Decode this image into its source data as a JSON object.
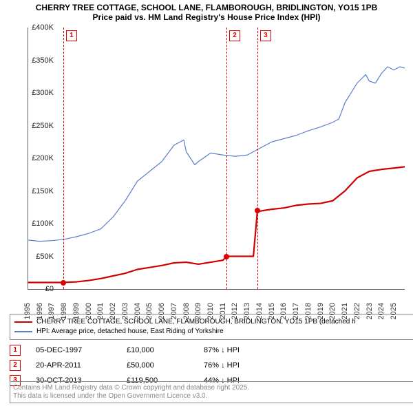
{
  "title_line1": "CHERRY TREE COTTAGE, SCHOOL LANE, FLAMBOROUGH, BRIDLINGTON, YO15 1PB",
  "title_line2": "Price paid vs. HM Land Registry's House Price Index (HPI)",
  "chart": {
    "type": "line",
    "x_min": 1995,
    "x_max": 2025.9,
    "y_min": 0,
    "y_max": 400000,
    "y_ticks": [
      0,
      50000,
      100000,
      150000,
      200000,
      250000,
      300000,
      350000,
      400000
    ],
    "y_tick_labels": [
      "£0",
      "£50K",
      "£100K",
      "£150K",
      "£200K",
      "£250K",
      "£300K",
      "£350K",
      "£400K"
    ],
    "x_ticks": [
      1995,
      1996,
      1997,
      1998,
      1999,
      2000,
      2001,
      2002,
      2003,
      2004,
      2005,
      2006,
      2007,
      2008,
      2009,
      2010,
      2011,
      2012,
      2013,
      2014,
      2015,
      2016,
      2017,
      2018,
      2019,
      2020,
      2021,
      2022,
      2023,
      2024,
      2025
    ],
    "colors": {
      "price": "#d00000",
      "hpi": "#5b7fc7",
      "grid": "#e6e6e6",
      "axis": "#5a5a5a",
      "marker_border": "#d00000"
    },
    "line_width_price": 2.2,
    "line_width_hpi": 1.2,
    "price_series": [
      [
        1995,
        10000
      ],
      [
        1997.93,
        10000
      ],
      [
        1997.93,
        10000
      ],
      [
        1999,
        11000
      ],
      [
        2000,
        13000
      ],
      [
        2001,
        16000
      ],
      [
        2002,
        20000
      ],
      [
        2003,
        24000
      ],
      [
        2004,
        30000
      ],
      [
        2005,
        33000
      ],
      [
        2006,
        36000
      ],
      [
        2007,
        40000
      ],
      [
        2008,
        41000
      ],
      [
        2009,
        38000
      ],
      [
        2010,
        41000
      ],
      [
        2011,
        44000
      ],
      [
        2011.3,
        50000
      ],
      [
        2013,
        50000
      ],
      [
        2013.5,
        50000
      ],
      [
        2013.83,
        119500
      ],
      [
        2014,
        119000
      ],
      [
        2015,
        122000
      ],
      [
        2016,
        124000
      ],
      [
        2017,
        128000
      ],
      [
        2018,
        130000
      ],
      [
        2019,
        131000
      ],
      [
        2020,
        135000
      ],
      [
        2021,
        150000
      ],
      [
        2022,
        170000
      ],
      [
        2023,
        180000
      ],
      [
        2024,
        183000
      ],
      [
        2025,
        185000
      ],
      [
        2025.9,
        187000
      ]
    ],
    "hpi_series": [
      [
        1995,
        75000
      ],
      [
        1996,
        73000
      ],
      [
        1997,
        74000
      ],
      [
        1998,
        76000
      ],
      [
        1999,
        80000
      ],
      [
        2000,
        85000
      ],
      [
        2001,
        92000
      ],
      [
        2002,
        110000
      ],
      [
        2003,
        135000
      ],
      [
        2004,
        165000
      ],
      [
        2005,
        180000
      ],
      [
        2006,
        195000
      ],
      [
        2007,
        220000
      ],
      [
        2007.8,
        228000
      ],
      [
        2008,
        210000
      ],
      [
        2008.7,
        190000
      ],
      [
        2009,
        195000
      ],
      [
        2010,
        208000
      ],
      [
        2011,
        205000
      ],
      [
        2012,
        203000
      ],
      [
        2013,
        205000
      ],
      [
        2014,
        215000
      ],
      [
        2015,
        225000
      ],
      [
        2016,
        230000
      ],
      [
        2017,
        235000
      ],
      [
        2018,
        242000
      ],
      [
        2019,
        248000
      ],
      [
        2020,
        255000
      ],
      [
        2020.5,
        260000
      ],
      [
        2021,
        285000
      ],
      [
        2022,
        315000
      ],
      [
        2022.7,
        328000
      ],
      [
        2023,
        318000
      ],
      [
        2023.5,
        315000
      ],
      [
        2024,
        330000
      ],
      [
        2024.5,
        340000
      ],
      [
        2025,
        335000
      ],
      [
        2025.5,
        340000
      ],
      [
        2025.9,
        338000
      ]
    ],
    "markers": [
      {
        "n": "1",
        "x": 1997.93,
        "y": 10000
      },
      {
        "n": "2",
        "x": 2011.3,
        "y": 50000
      },
      {
        "n": "3",
        "x": 2013.83,
        "y": 119500
      }
    ]
  },
  "legend": {
    "row1": "CHERRY TREE COTTAGE, SCHOOL LANE, FLAMBOROUGH, BRIDLINGTON, YO15 1PB (detached h",
    "row2": "HPI: Average price, detached house, East Riding of Yorkshire"
  },
  "transactions": [
    {
      "n": "1",
      "date": "05-DEC-1997",
      "price": "£10,000",
      "pct": "87% ↓ HPI"
    },
    {
      "n": "2",
      "date": "20-APR-2011",
      "price": "£50,000",
      "pct": "76% ↓ HPI"
    },
    {
      "n": "3",
      "date": "30-OCT-2013",
      "price": "£119,500",
      "pct": "44% ↓ HPI"
    }
  ],
  "footer_line1": "Contains HM Land Registry data © Crown copyright and database right 2025.",
  "footer_line2": "This data is licensed under the Open Government Licence v3.0."
}
